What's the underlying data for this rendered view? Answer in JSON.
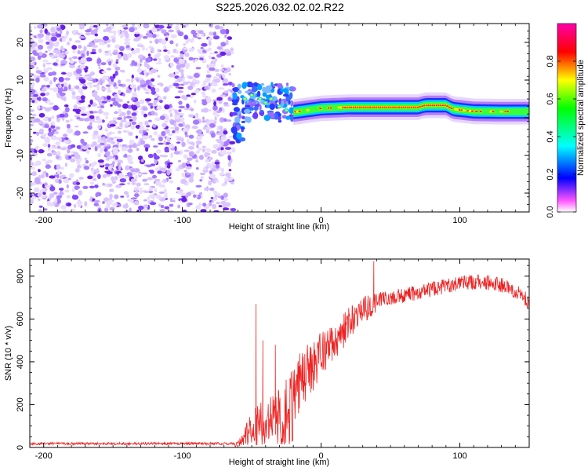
{
  "title": "S225.2026.032.02.02.R22",
  "chart_data": [
    {
      "type": "heatmap",
      "name": "spectrogram",
      "xlabel": "Height of straight line (km)",
      "ylabel": "Frequency (Hz)",
      "xlim": [
        -210,
        150
      ],
      "ylim": [
        -25,
        25
      ],
      "xticks": [
        -200,
        -100,
        0,
        100
      ],
      "yticks": [
        -20,
        -10,
        0,
        10,
        20
      ],
      "noise_region": {
        "x_from": -210,
        "x_to": -63
      },
      "transition_region": {
        "x_from": -63,
        "x_to": -20,
        "freq_center": 4
      },
      "signal_ridge": [
        {
          "x": -20,
          "freq": 1.5
        },
        {
          "x": -10,
          "freq": 2.0
        },
        {
          "x": 0,
          "freq": 2.5
        },
        {
          "x": 20,
          "freq": 2.8
        },
        {
          "x": 40,
          "freq": 2.8
        },
        {
          "x": 60,
          "freq": 2.8
        },
        {
          "x": 70,
          "freq": 2.8
        },
        {
          "x": 75,
          "freq": 3.3
        },
        {
          "x": 90,
          "freq": 3.3
        },
        {
          "x": 95,
          "freq": 2.3
        },
        {
          "x": 110,
          "freq": 1.7
        },
        {
          "x": 130,
          "freq": 1.6
        },
        {
          "x": 150,
          "freq": 1.6
        }
      ],
      "colorbar": {
        "label": "Normalized spectral amplitude",
        "range": [
          0,
          1
        ],
        "ticks": [
          0.0,
          0.2,
          0.4,
          0.6,
          0.8
        ],
        "tick_labels": [
          "0.0",
          "0.2",
          "0.4",
          "0.6",
          "0.8"
        ],
        "colors": [
          "#ffffff",
          "#ff00ff",
          "#0000ff",
          "#00ffff",
          "#00ff00",
          "#ffff00",
          "#ff0000",
          "#ff00aa"
        ]
      }
    },
    {
      "type": "line",
      "name": "snr",
      "xlabel": "Height of straight line (km)",
      "ylabel": "SNR (10 * v/v)",
      "xlim": [
        -210,
        150
      ],
      "ylim": [
        0,
        880
      ],
      "xticks": [
        -200,
        -100,
        0,
        100
      ],
      "yticks": [
        0,
        200,
        400,
        600,
        800
      ],
      "color": "#ee2222",
      "noise_floor": 18,
      "envelope": [
        {
          "x": -210,
          "y": 18
        },
        {
          "x": -60,
          "y": 20
        },
        {
          "x": -48,
          "y": 150
        },
        {
          "x": -40,
          "y": 180
        },
        {
          "x": -30,
          "y": 210
        },
        {
          "x": -20,
          "y": 290
        },
        {
          "x": -10,
          "y": 380
        },
        {
          "x": 0,
          "y": 450
        },
        {
          "x": 10,
          "y": 520
        },
        {
          "x": 20,
          "y": 590
        },
        {
          "x": 30,
          "y": 650
        },
        {
          "x": 40,
          "y": 690
        },
        {
          "x": 60,
          "y": 710
        },
        {
          "x": 80,
          "y": 740
        },
        {
          "x": 100,
          "y": 765
        },
        {
          "x": 115,
          "y": 775
        },
        {
          "x": 130,
          "y": 760
        },
        {
          "x": 140,
          "y": 730
        },
        {
          "x": 150,
          "y": 680
        }
      ],
      "peaks": [
        {
          "x": -47,
          "y": 670
        },
        {
          "x": -42,
          "y": 500
        },
        {
          "x": -33,
          "y": 480
        },
        {
          "x": 38,
          "y": 870
        }
      ]
    }
  ]
}
